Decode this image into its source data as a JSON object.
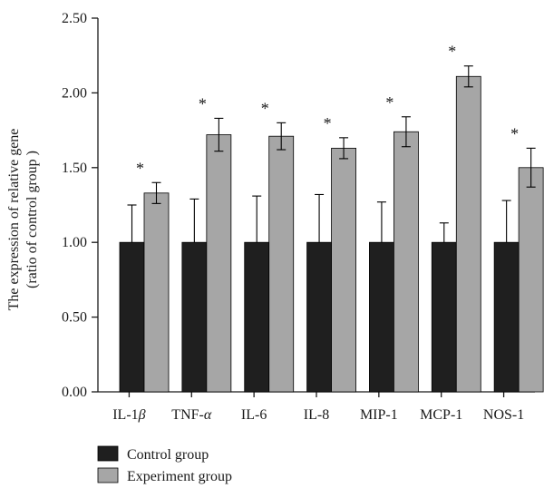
{
  "chart_data": {
    "type": "bar",
    "title": "",
    "xlabel": "",
    "ylabel_line1": "The expression of relative gene",
    "ylabel_line2": "(ratio of control group )",
    "ylim": [
      0,
      2.5
    ],
    "yticks": [
      "0.00",
      "0.50",
      "1.00",
      "1.50",
      "2.00",
      "2.50"
    ],
    "ytick_values": [
      0,
      0.5,
      1.0,
      1.5,
      2.0,
      2.5
    ],
    "categories": [
      {
        "name": "IL-1",
        "greek": "β"
      },
      {
        "name": "TNF-",
        "greek": "α"
      },
      {
        "name": "IL-6",
        "greek": ""
      },
      {
        "name": "IL-8",
        "greek": ""
      },
      {
        "name": "MIP-1",
        "greek": ""
      },
      {
        "name": "MCP-1",
        "greek": ""
      },
      {
        "name": "NOS-1",
        "greek": ""
      }
    ],
    "series": [
      {
        "name": "Control group",
        "color": "#1f1f1f",
        "values": [
          1.0,
          1.0,
          1.0,
          1.0,
          1.0,
          1.0,
          1.0
        ],
        "errors": [
          0.25,
          0.29,
          0.31,
          0.32,
          0.27,
          0.13,
          0.28
        ]
      },
      {
        "name": "Experiment group",
        "color": "#a6a6a6",
        "values": [
          1.33,
          1.72,
          1.71,
          1.63,
          1.74,
          2.11,
          1.5
        ],
        "errors": [
          0.07,
          0.11,
          0.09,
          0.07,
          0.1,
          0.07,
          0.13
        ]
      }
    ],
    "significance_marker": "*",
    "legend": {
      "position": "bottom-left",
      "items": [
        "Control group",
        "Experiment group"
      ]
    },
    "grid": false
  }
}
